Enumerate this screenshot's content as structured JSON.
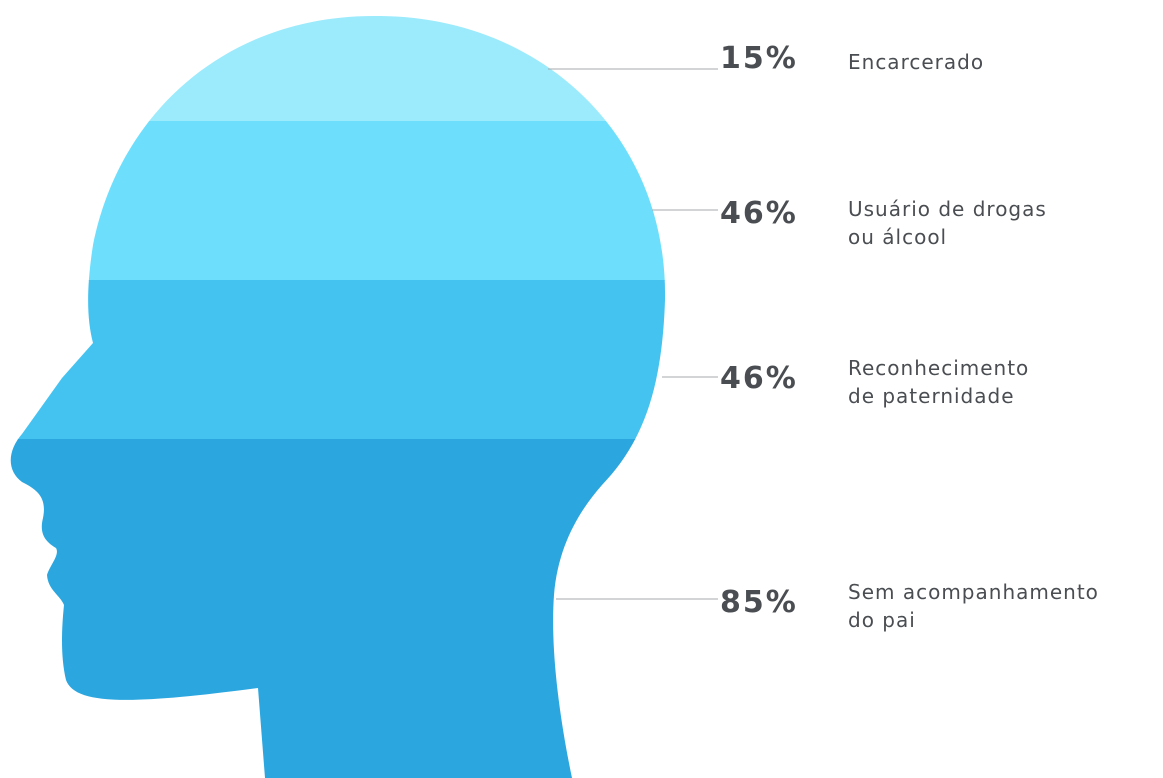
{
  "colors": {
    "band_1": "#9BEBFC",
    "band_2": "#6DDFFC",
    "band_3": "#45C3F0",
    "band_4": "#2CA6DF",
    "text": "#4A4D51",
    "leader_line": "#A7A9AC"
  },
  "stats": [
    {
      "value": "15%",
      "label_lines": [
        "Encarcerado"
      ]
    },
    {
      "value": "46%",
      "label_lines": [
        "Usuário de drogas",
        "ou álcool"
      ]
    },
    {
      "value": "46%",
      "label_lines": [
        "Reconhecimento",
        "de paternidade"
      ]
    },
    {
      "value": "85%",
      "label_lines": [
        "Sem acompanhamento",
        "do pai"
      ]
    }
  ]
}
